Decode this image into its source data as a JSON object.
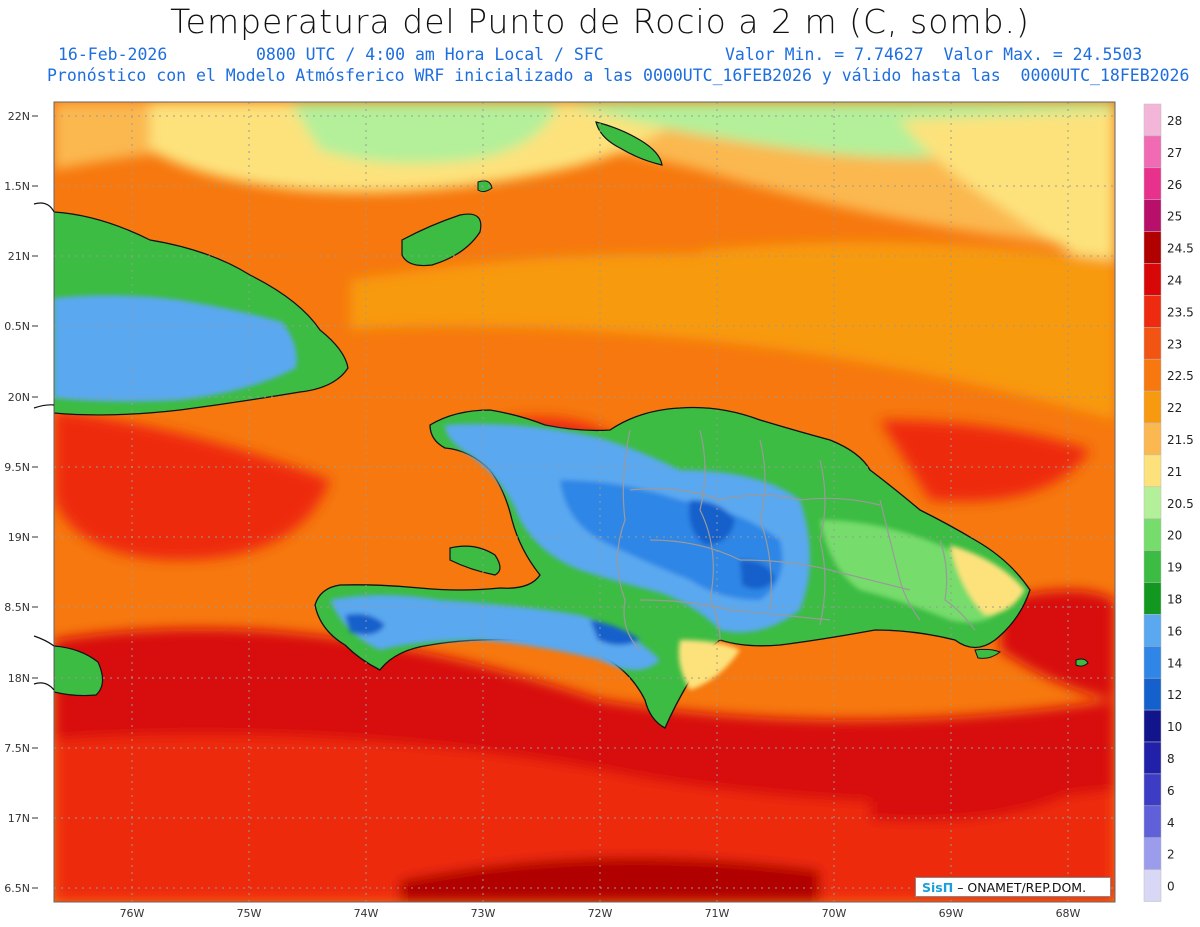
{
  "title": "Temperatura del Punto de Rocio a 2 m (C, somb.)",
  "subtitle": {
    "date": "16-Feb-2026",
    "time": "0800 UTC / 4:00 am Hora Local / SFC",
    "minmax": "Valor Min. = 7.74627  Valor Max. = 24.5503",
    "model": "Pronóstico con el Modelo Atmósferico WRF inicializado a las 0000UTC_16FEB2026 y válido hasta las  0000UTC_18FEB2026"
  },
  "map": {
    "lat_ticks": [
      "22N",
      "1.5N",
      "21N",
      "0.5N",
      "20N",
      "9.5N",
      "19N",
      "8.5N",
      "18N",
      "7.5N",
      "17N",
      "6.5N"
    ],
    "lon_ticks": [
      "76W",
      "75W",
      "74W",
      "73W",
      "72W",
      "71W",
      "70W",
      "69W",
      "68W"
    ]
  },
  "colorbar": {
    "labels": [
      "28",
      "27",
      "26",
      "25",
      "24.5",
      "24",
      "23.5",
      "23",
      "22.5",
      "22",
      "21.5",
      "21",
      "20.5",
      "20",
      "19",
      "18",
      "16",
      "14",
      "12",
      "10",
      "8",
      "6",
      "4",
      "2",
      "0"
    ],
    "colors": [
      "#f4b6d8",
      "#f06bb4",
      "#e8318c",
      "#b8106a",
      "#b00000",
      "#d80808",
      "#ee2a10",
      "#f25414",
      "#f6780e",
      "#f89a10",
      "#fbb850",
      "#fde27c",
      "#b4f09a",
      "#76dc6c",
      "#3cbc42",
      "#129820",
      "#5aa8f0",
      "#2f86e6",
      "#1460cc",
      "#12148c",
      "#2020a8",
      "#3c3cc4",
      "#6060d8",
      "#9c9cec",
      "#d8d8f6"
    ]
  },
  "credit": {
    "brand": "SisΠ",
    "text": "– ONAMET/REP.DOM."
  }
}
